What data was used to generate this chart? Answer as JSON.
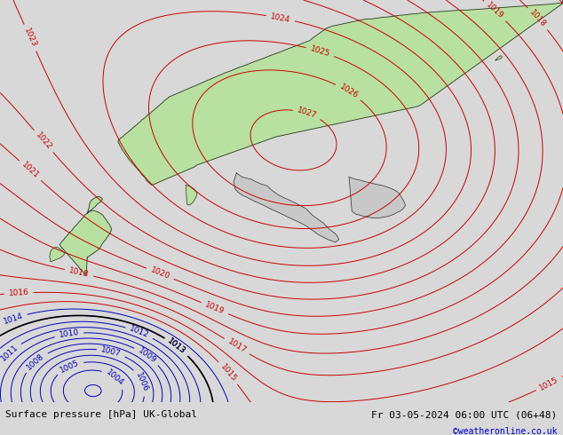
{
  "title_left": "Surface pressure [hPa] UK-Global",
  "title_right": "Fr 03-05-2024 06:00 UTC (06+48)",
  "copyright": "©weatheronline.co.uk",
  "bg_color": "#d8d8d8",
  "land_color": "#b8e0a0",
  "sea_color": "#d8d8d8",
  "water_color": "#c8c8c8",
  "red_contour_color": "#cc0000",
  "blue_contour_color": "#0000bb",
  "black_contour_color": "#000000",
  "label_fontsize": 6.5,
  "footer_fontsize": 8,
  "copyright_color": "#0000cc"
}
